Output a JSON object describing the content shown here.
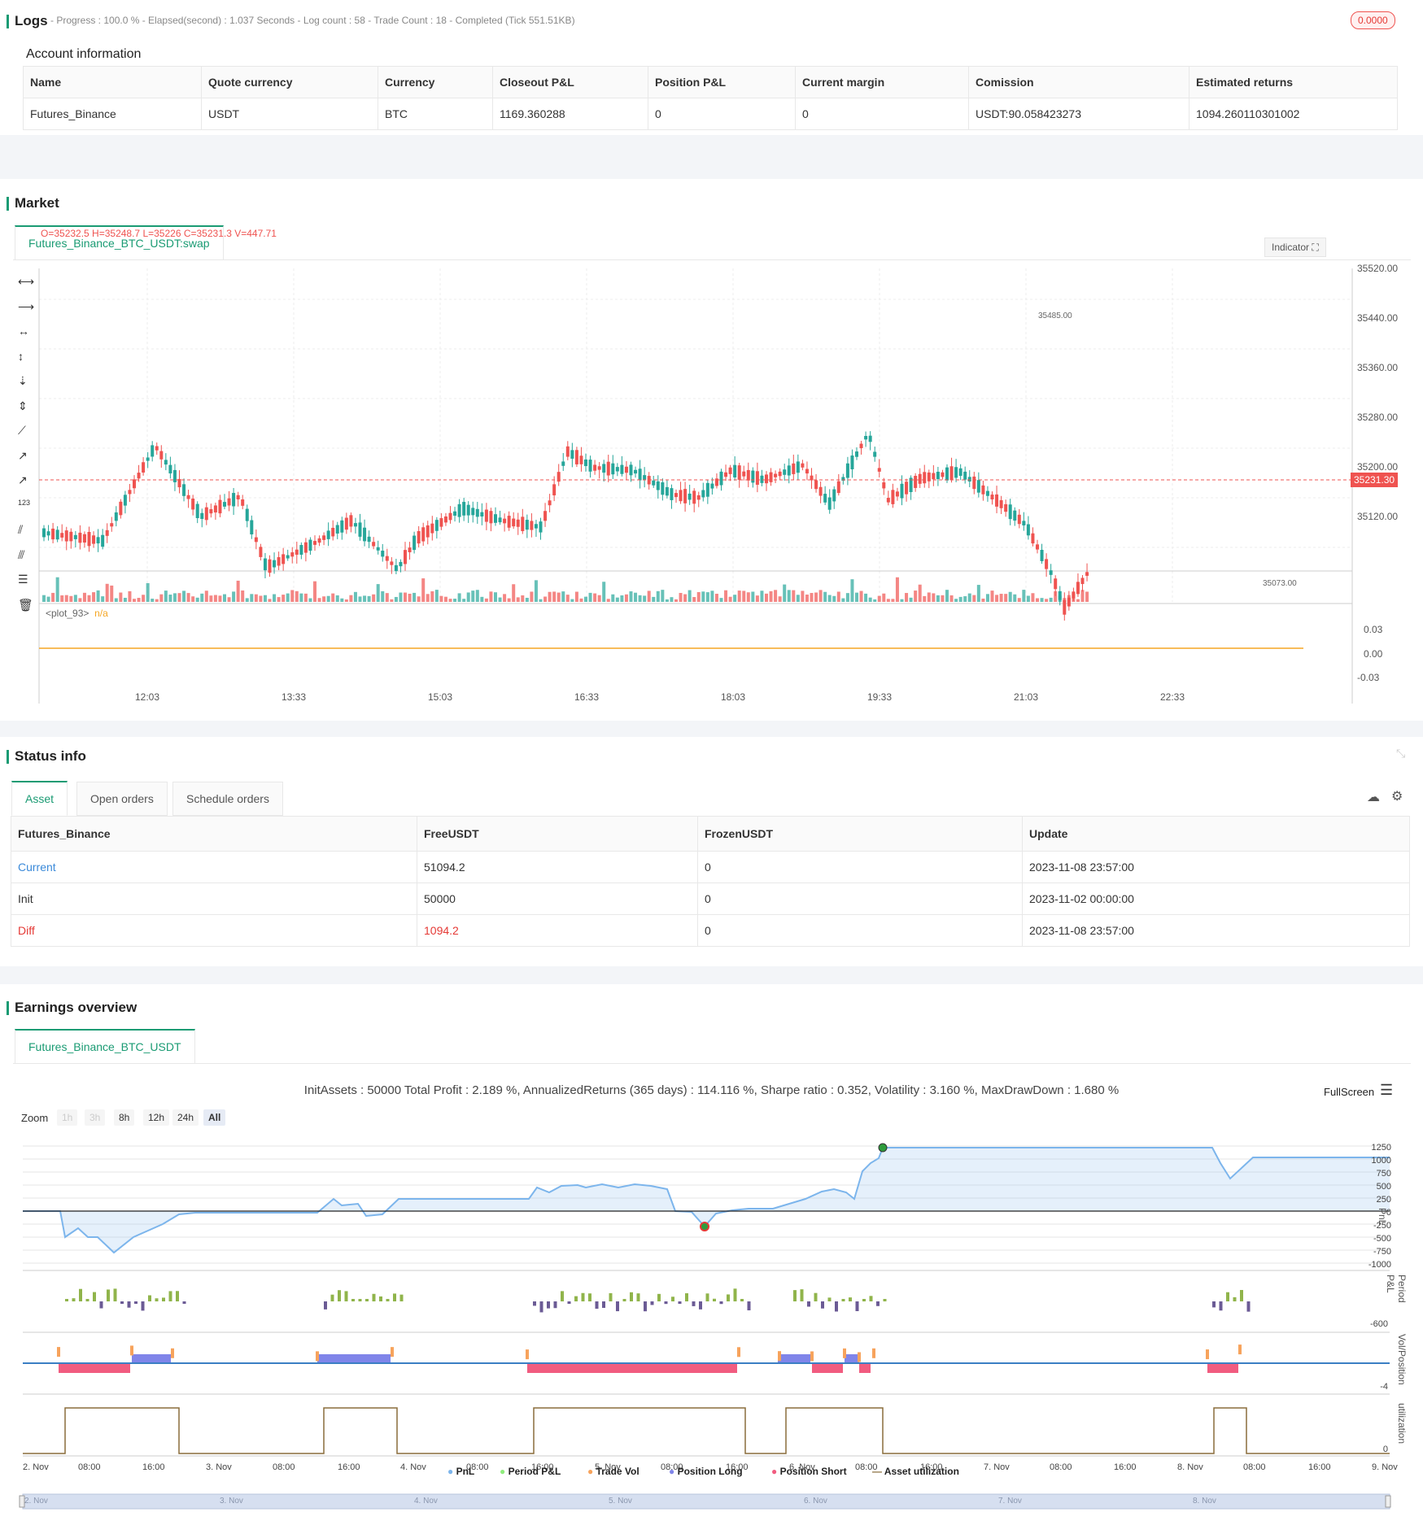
{
  "logs": {
    "title": "Logs",
    "status": "- Progress : 100.0 % - Elapsed(second) : 1.037 Seconds - Log count : 58 - Trade Count : 18 - Completed (Tick 551.51KB)",
    "badge": "0.0000",
    "account_title": "Account information",
    "columns": [
      "Name",
      "Quote currency",
      "Currency",
      "Closeout P&L",
      "Position P&L",
      "Current margin",
      "Comission",
      "Estimated returns"
    ],
    "row": [
      "Futures_Binance",
      "USDT",
      "BTC",
      "1169.360288",
      "0",
      "0",
      "USDT:90.058423273",
      "1094.260110301002"
    ]
  },
  "market": {
    "title": "Market",
    "tab": "Futures_Binance_BTC_USDT:swap",
    "ohlc": "O=35232.5 H=35248.7 L=35226 C=35231.3 V=447.71",
    "indicator_btn": "Indicator",
    "price_ticks": [
      "35520.00",
      "35440.00",
      "35360.00",
      "35280.00",
      "35200.00",
      "35120.00"
    ],
    "current_price": "35231.30",
    "high_label": "35485.00",
    "low_label": "35073.00",
    "plot_label": "<plot_93>",
    "plot_value": "n/a",
    "ind_ticks": [
      "0.03",
      "0.00",
      "-0.03"
    ],
    "time_ticks": [
      "12:03",
      "13:33",
      "15:03",
      "16:33",
      "18:03",
      "19:33",
      "21:03",
      "22:33"
    ]
  },
  "status": {
    "title": "Status info",
    "tabs": [
      "Asset",
      "Open orders",
      "Schedule orders"
    ],
    "columns": [
      "Futures_Binance",
      "FreeUSDT",
      "FrozenUSDT",
      "Update"
    ],
    "rows": [
      [
        "Current",
        "51094.2",
        "0",
        "2023-11-08 23:57:00"
      ],
      [
        "Init",
        "50000",
        "0",
        "2023-11-02 00:00:00"
      ],
      [
        "Diff",
        "1094.2",
        "0",
        "2023-11-08 23:57:00"
      ]
    ]
  },
  "earnings": {
    "title": "Earnings overview",
    "tab": "Futures_Binance_BTC_USDT",
    "summary": "InitAssets : 50000 Total Profit : 2.189 %, AnnualizedReturns (365 days) : 114.116 %, Sharpe ratio : 0.352, Volatility : 3.160 %, MaxDrawDown : 1.680 %",
    "fullscreen": "FullScreen",
    "zoom_label": "Zoom",
    "zoom": [
      "1h",
      "3h",
      "8h",
      "12h",
      "24h",
      "All"
    ],
    "pnl_ticks": [
      "1250",
      "1000",
      "750",
      "500",
      "250",
      "0",
      "-250",
      "-500",
      "-750",
      "-1000"
    ],
    "period_tick": "-600",
    "vol_tick": "-4",
    "util_tick": "0",
    "axis_labels": [
      "PnL",
      "Period P&L",
      "Vol/Position",
      "utilization"
    ],
    "date_ticks": [
      "2. Nov",
      "08:00",
      "16:00",
      "3. Nov",
      "08:00",
      "16:00",
      "4. Nov",
      "08:00",
      "16:00",
      "5. Nov",
      "08:00",
      "16:00",
      "6. Nov",
      "08:00",
      "16:00",
      "7. Nov",
      "08:00",
      "16:00",
      "8. Nov",
      "08:00",
      "16:00",
      "9. Nov"
    ],
    "legend": [
      "PnL",
      "Period P&L",
      "Trade Vol",
      "Position Long",
      "Position Short",
      "Asset utilization"
    ],
    "nav_ticks": [
      "2. Nov",
      "3. Nov",
      "4. Nov",
      "5. Nov",
      "6. Nov",
      "7. Nov",
      "8. Nov"
    ]
  },
  "colors": {
    "accent": "#1a9b73",
    "up": "#26a69a",
    "down": "#ef5350",
    "pnl": "#7cb5ec",
    "long": "#8085e9",
    "short": "#f15c80",
    "vol": "#f7a35c",
    "period_up": "#90b44b",
    "period_down": "#6b5b95",
    "util": "#8a6d3b"
  }
}
